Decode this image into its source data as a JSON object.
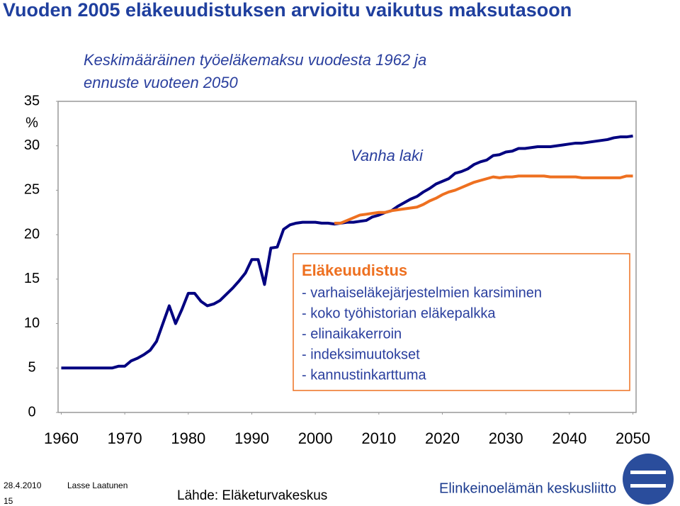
{
  "chart_data": {
    "type": "line",
    "title": "Vuoden 2005 eläkeuudistuksen arvioitu vaikutus maksutasoon",
    "subtitle": [
      "Keskimääräinen työeläkemaksu vuodesta 1962 ja",
      "ennuste vuoteen 2050"
    ],
    "y_unit": "%",
    "xlim": [
      1959.5,
      2050.5
    ],
    "xticks": [
      1960,
      1970,
      1980,
      1990,
      2000,
      2010,
      2020,
      2030,
      2040,
      2050
    ],
    "ylim": [
      0,
      35
    ],
    "yticks": [
      0,
      5,
      10,
      15,
      20,
      25,
      30,
      35
    ],
    "grid": false,
    "series": [
      {
        "name": "Vanha laki",
        "color": "#000080",
        "x": [
          1960,
          1961,
          1962,
          1963,
          1964,
          1965,
          1966,
          1967,
          1968,
          1969,
          1970,
          1971,
          1972,
          1973,
          1974,
          1975,
          1976,
          1977,
          1978,
          1979,
          1980,
          1981,
          1982,
          1983,
          1984,
          1985,
          1986,
          1987,
          1988,
          1989,
          1990,
          1991,
          1992,
          1993,
          1994,
          1995,
          1996,
          1997,
          1998,
          1999,
          2000,
          2001,
          2002,
          2003,
          2004,
          2005,
          2006,
          2007,
          2008,
          2009,
          2010,
          2011,
          2012,
          2013,
          2014,
          2015,
          2016,
          2017,
          2018,
          2019,
          2020,
          2021,
          2022,
          2023,
          2024,
          2025,
          2026,
          2027,
          2028,
          2029,
          2030,
          2031,
          2032,
          2033,
          2034,
          2035,
          2036,
          2037,
          2038,
          2039,
          2040,
          2041,
          2042,
          2043,
          2044,
          2045,
          2046,
          2047,
          2048,
          2049,
          2050
        ],
        "values": [
          5,
          5,
          5,
          5,
          5,
          5,
          5,
          5,
          5,
          5.2,
          5.2,
          5.8,
          6.1,
          6.5,
          7.0,
          8.0,
          10.0,
          12.0,
          10.0,
          11.6,
          13.4,
          13.4,
          12.5,
          12.0,
          12.2,
          12.6,
          13.3,
          14.0,
          14.8,
          15.7,
          17.2,
          17.2,
          14.4,
          18.5,
          18.6,
          20.6,
          21.1,
          21.3,
          21.4,
          21.4,
          21.4,
          21.3,
          21.3,
          21.2,
          21.3,
          21.4,
          21.4,
          21.5,
          21.6,
          22.0,
          22.2,
          22.5,
          22.7,
          23.2,
          23.6,
          24.0,
          24.3,
          24.8,
          25.2,
          25.7,
          26.0,
          26.3,
          26.9,
          27.1,
          27.4,
          27.9,
          28.2,
          28.4,
          28.9,
          29.0,
          29.3,
          29.4,
          29.7,
          29.7,
          29.8,
          29.9,
          29.9,
          29.9,
          30.0,
          30.1,
          30.2,
          30.3,
          30.3,
          30.4,
          30.5,
          30.6,
          30.7,
          30.9,
          31.0,
          31.0,
          31.1
        ]
      },
      {
        "name": "Eläkeuudistus",
        "color": "#ee7020",
        "x": [
          2003,
          2004,
          2005,
          2006,
          2007,
          2008,
          2009,
          2010,
          2011,
          2012,
          2013,
          2014,
          2015,
          2016,
          2017,
          2018,
          2019,
          2020,
          2021,
          2022,
          2023,
          2024,
          2025,
          2026,
          2027,
          2028,
          2029,
          2030,
          2031,
          2032,
          2033,
          2034,
          2035,
          2036,
          2037,
          2038,
          2039,
          2040,
          2041,
          2042,
          2043,
          2044,
          2045,
          2046,
          2047,
          2048,
          2049,
          2050
        ],
        "values": [
          21.3,
          21.3,
          21.6,
          21.9,
          22.2,
          22.3,
          22.4,
          22.5,
          22.5,
          22.7,
          22.8,
          22.9,
          23.0,
          23.1,
          23.4,
          23.8,
          24.1,
          24.5,
          24.8,
          25.0,
          25.3,
          25.6,
          25.9,
          26.1,
          26.3,
          26.5,
          26.4,
          26.5,
          26.5,
          26.6,
          26.6,
          26.6,
          26.6,
          26.6,
          26.5,
          26.5,
          26.5,
          26.5,
          26.5,
          26.4,
          26.4,
          26.4,
          26.4,
          26.4,
          26.4,
          26.4,
          26.6,
          26.6
        ]
      }
    ],
    "annotation": {
      "heading": "Eläkeuudistus",
      "items": [
        "- varhaiseläkejärjestelmien karsiminen",
        "- koko työhistorian eläkepalkka",
        "- elinaikakerroin",
        "- indeksimuutokset",
        "- kannustinkarttuma"
      ]
    }
  },
  "footer": {
    "date": "28.4.2010",
    "author": "Lasse Laatunen",
    "page": "15",
    "source": "Lähde: Eläketurvakeskus",
    "organization": "Elinkeinoelämän keskusliitto"
  }
}
